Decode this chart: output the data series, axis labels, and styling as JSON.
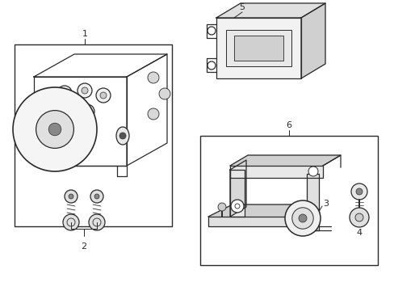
{
  "background_color": "#ffffff",
  "line_color": "#2a2a2a",
  "label_color": "#1a1a1a",
  "lw": 0.9
}
